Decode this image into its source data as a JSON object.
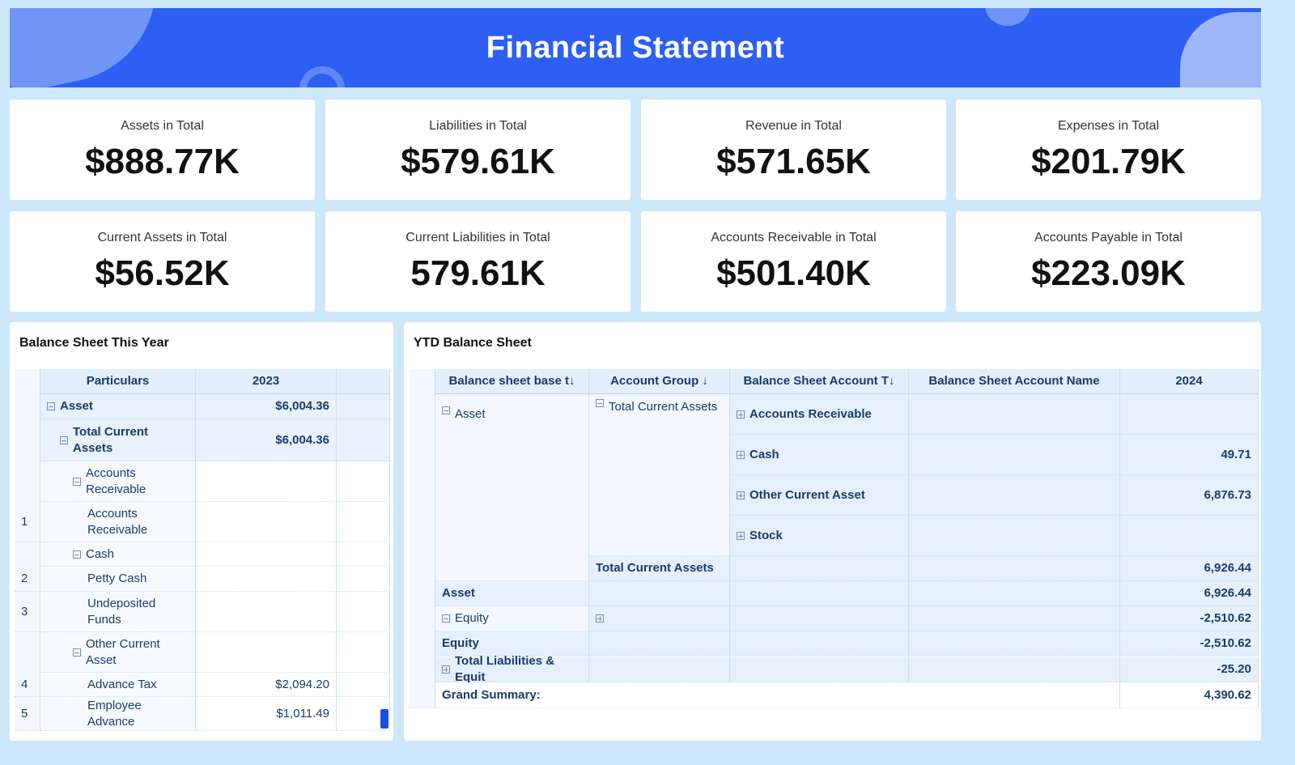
{
  "header": {
    "title": "Financial Statement",
    "brand_color": "#2d5ff2"
  },
  "kpis": [
    {
      "label": "Assets in Total",
      "value": "$888.77K"
    },
    {
      "label": "Liabilities in Total",
      "value": "$579.61K"
    },
    {
      "label": "Revenue in Total",
      "value": "$571.65K"
    },
    {
      "label": "Expenses in Total",
      "value": "$201.79K"
    },
    {
      "label": "Current Assets in Total",
      "value": "$56.52K"
    },
    {
      "label": "Current Liabilities in Total",
      "value": "579.61K"
    },
    {
      "label": "Accounts Receivable in Total",
      "value": "$501.40K"
    },
    {
      "label": "Accounts Payable in Total",
      "value": "$223.09K"
    }
  ],
  "left": {
    "title": "Balance Sheet This Year",
    "headers": [
      "Particulars",
      "2023"
    ],
    "rows": [
      {
        "num": "",
        "label": "Asset",
        "value": "$6,004.36",
        "icon": "minus",
        "bold": true,
        "indent": 0
      },
      {
        "num": "",
        "label": "Total Current Assets",
        "value": "$6,004.36",
        "icon": "minus",
        "bold": true,
        "indent": 1
      },
      {
        "num": "",
        "label": "Accounts Receivable",
        "value": "",
        "icon": "minus",
        "indent": 2
      },
      {
        "num": "1",
        "label": "Accounts Receivable",
        "value": "",
        "indent": 3
      },
      {
        "num": "",
        "label": "Cash",
        "value": "",
        "icon": "minus",
        "indent": 2
      },
      {
        "num": "2",
        "label": "Petty Cash",
        "value": "",
        "indent": 3
      },
      {
        "num": "3",
        "label": "Undeposited Funds",
        "value": "",
        "indent": 3
      },
      {
        "num": "",
        "label": "Other Current Asset",
        "value": "",
        "icon": "minus",
        "indent": 2
      },
      {
        "num": "4",
        "label": "Advance Tax",
        "value": "$2,094.20",
        "indent": 3
      },
      {
        "num": "5",
        "label": "Employee Advance",
        "value": "$1,011.49",
        "indent": 3
      }
    ]
  },
  "right": {
    "title": "YTD Balance Sheet",
    "headers": [
      "Balance sheet base t↓",
      "Account Group ↓",
      "Balance Sheet Account T↓",
      "Balance Sheet Account Name",
      "2024"
    ],
    "c1": {
      "asset": "Asset",
      "asset_total": "Asset",
      "equity": "Equity",
      "equity_total": "Equity",
      "tle": "Total Liabilities & Equit",
      "grand": "Grand Summary:"
    },
    "c2": {
      "tca": "Total Current Assets",
      "tca_total": "Total Current Assets"
    },
    "types": [
      {
        "label": "Accounts Receivable",
        "value": ""
      },
      {
        "label": "Cash",
        "value": "49.71"
      },
      {
        "label": "Other Current Asset",
        "value": "6,876.73"
      },
      {
        "label": "Stock",
        "value": ""
      }
    ],
    "values": {
      "tca_total": "6,926.44",
      "asset_total": "6,926.44",
      "equity": "-2,510.62",
      "equity_total": "-2,510.62",
      "tle": "-25.20",
      "grand": "4,390.62"
    }
  }
}
